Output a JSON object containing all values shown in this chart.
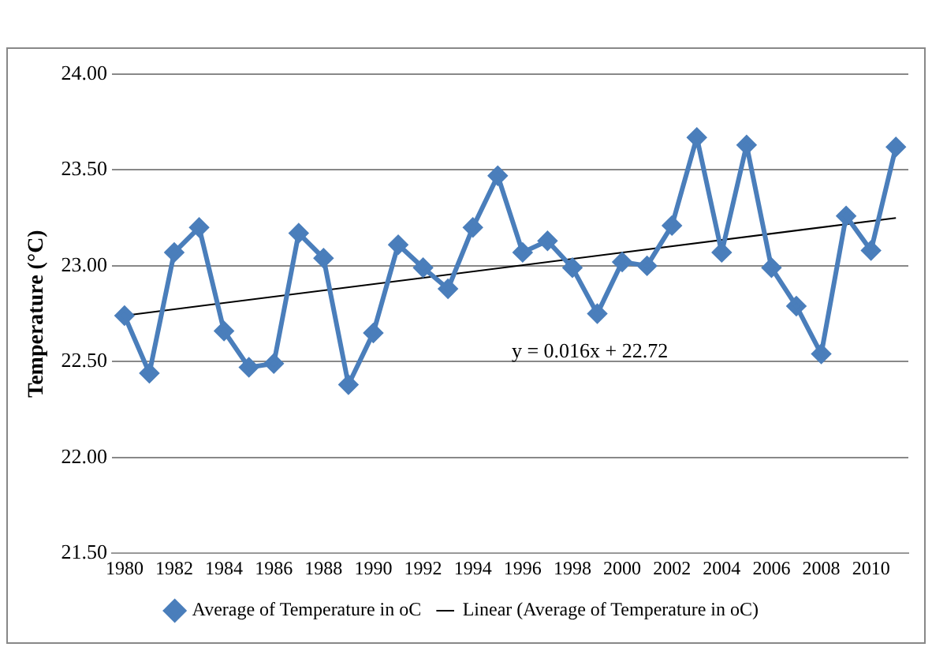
{
  "chart_data": {
    "type": "line",
    "ylabel": "Temperature (°C)",
    "categories": [
      "1980",
      null,
      "1982",
      null,
      "1984",
      null,
      "1986",
      null,
      "1988",
      null,
      "1990",
      null,
      "1992",
      null,
      "1994",
      null,
      "1996",
      null,
      "1998",
      null,
      "2000",
      null,
      "2002",
      null,
      "2004",
      null,
      "2006",
      null,
      "2008",
      null,
      "2010",
      null
    ],
    "series": [
      {
        "name": "Average of Temperature in oC",
        "color": "#4a7ebb",
        "marker": "diamond",
        "values": [
          22.74,
          22.44,
          23.07,
          23.2,
          22.66,
          22.47,
          22.49,
          23.17,
          23.04,
          22.38,
          22.65,
          23.11,
          22.99,
          22.88,
          23.2,
          23.47,
          23.07,
          23.13,
          22.99,
          22.75,
          23.02,
          23.0,
          23.21,
          23.67,
          23.07,
          23.63,
          22.99,
          22.79,
          22.54,
          23.26,
          23.08,
          23.62
        ]
      },
      {
        "name": "Linear (Average of Temperature in oC)",
        "color": "#000000",
        "marker": "none",
        "values": [
          22.74,
          null,
          null,
          null,
          null,
          null,
          null,
          null,
          null,
          null,
          null,
          null,
          null,
          null,
          null,
          null,
          null,
          null,
          null,
          null,
          null,
          null,
          null,
          null,
          null,
          null,
          null,
          null,
          null,
          null,
          null,
          23.25
        ]
      }
    ],
    "ylim": [
      21.5,
      24
    ],
    "yticks": [
      {
        "value": 21.5,
        "label": "21.50"
      },
      {
        "value": 22,
        "label": "22.00"
      },
      {
        "value": 22.5,
        "label": "22.50"
      },
      {
        "value": 23,
        "label": "23.00"
      },
      {
        "value": 23.5,
        "label": "23.50"
      },
      {
        "value": 24,
        "label": "24.00"
      }
    ],
    "grid": "y",
    "legend": "bottom",
    "annotations": [
      "y = 0.016x + 22.72"
    ]
  }
}
